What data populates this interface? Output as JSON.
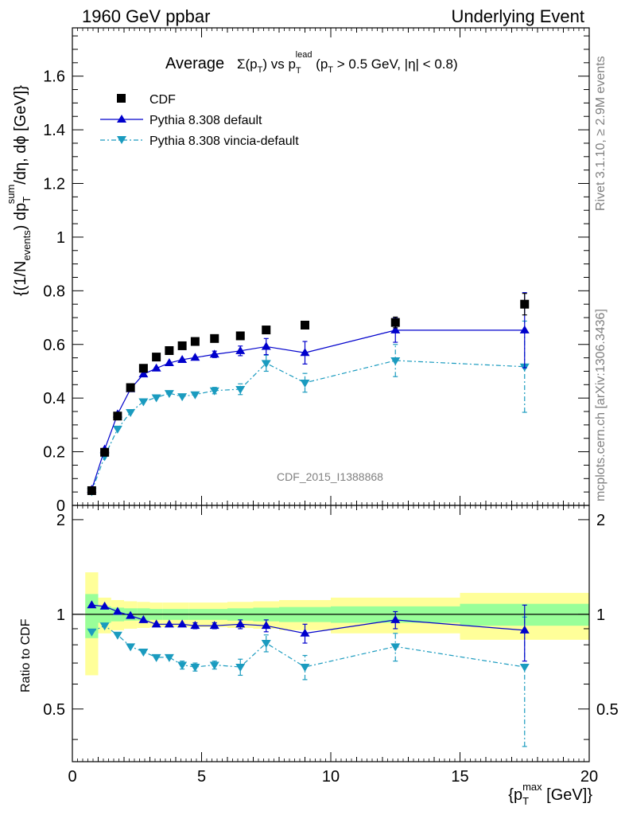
{
  "header": {
    "left": "1960 GeV ppbar",
    "right": "Underlying Event"
  },
  "side": {
    "rivet": "Rivet 3.1.10, ≥ 2.9M events",
    "mcplots": "mcplots.cern.ch [arXiv:1306.3436]"
  },
  "watermark": "CDF_2015_I1388868",
  "plot_title": {
    "a": "Average",
    "b": "Σ(p",
    "b_sub": "T",
    "c": ") vs p",
    "c_sub": "T",
    "c_sup": "lead",
    "d": " (p",
    "d_sub": "T",
    "e": " > 0.5 GeV, |η| < 0.8)"
  },
  "y_label_main": "{(1/N_events) dp_T^sum/dη, dϕ [GeV]}",
  "y_label_ratio": "Ratio to CDF",
  "x_label": "{p_T^max [GeV]}",
  "legend": {
    "cdf": "CDF",
    "pythia": "Pythia 8.308 default",
    "vincia": "Pythia 8.308 vincia-default"
  },
  "colors": {
    "cdf": "#000000",
    "pythia": "#0000cc",
    "vincia": "#1a9bbf",
    "band_inner": "#99ff99",
    "band_outer": "#ffff99"
  },
  "chart_data": {
    "type": "scatter",
    "x_range": [
      0,
      20
    ],
    "main": {
      "ylim": [
        0,
        1.78
      ],
      "yticks": [
        "0",
        "0.2",
        "0.4",
        "0.6",
        "0.8",
        "1",
        "1.2",
        "1.4",
        "1.6"
      ],
      "ytick_values": [
        0,
        0.2,
        0.4,
        0.6,
        0.8,
        1.0,
        1.2,
        1.4,
        1.6
      ]
    },
    "ratio": {
      "ylim": [
        0.34,
        2.22
      ],
      "yticks": [
        "0.5",
        "1",
        "2"
      ],
      "ytick_values": [
        0.5,
        1,
        2
      ]
    },
    "xticks": [
      "0",
      "5",
      "10",
      "15",
      "20"
    ],
    "xtick_values": [
      0,
      5,
      10,
      15,
      20
    ],
    "cdf": {
      "x": [
        0.75,
        1.25,
        1.75,
        2.25,
        2.75,
        3.25,
        3.75,
        4.25,
        4.75,
        5.5,
        6.5,
        7.5,
        9.0,
        12.5,
        17.5
      ],
      "y": [
        0.055,
        0.198,
        0.333,
        0.439,
        0.511,
        0.553,
        0.577,
        0.595,
        0.611,
        0.622,
        0.632,
        0.654,
        0.672,
        0.682,
        0.75
      ],
      "yerr": [
        0.003,
        0.004,
        0.005,
        0.006,
        0.007,
        0.007,
        0.007,
        0.008,
        0.008,
        0.008,
        0.009,
        0.01,
        0.012,
        0.02,
        0.04
      ]
    },
    "pythia": {
      "name": "Pythia 8.308 default",
      "x": [
        0.75,
        1.25,
        1.75,
        2.25,
        2.75,
        3.25,
        3.75,
        4.25,
        4.75,
        5.5,
        6.5,
        7.5,
        9.0,
        12.5,
        17.5
      ],
      "y": [
        0.059,
        0.209,
        0.34,
        0.434,
        0.489,
        0.511,
        0.531,
        0.543,
        0.551,
        0.563,
        0.576,
        0.592,
        0.569,
        0.653,
        0.653
      ],
      "yerr": [
        0.002,
        0.003,
        0.004,
        0.005,
        0.006,
        0.007,
        0.008,
        0.009,
        0.01,
        0.012,
        0.018,
        0.03,
        0.042,
        0.045,
        0.14
      ]
    },
    "vincia": {
      "name": "Pythia 8.308 vincia-default",
      "x": [
        0.75,
        1.25,
        1.75,
        2.25,
        2.75,
        3.25,
        3.75,
        4.25,
        4.75,
        5.5,
        6.5,
        7.5,
        9.0,
        12.5,
        17.5
      ],
      "y": [
        0.052,
        0.183,
        0.285,
        0.347,
        0.387,
        0.402,
        0.418,
        0.406,
        0.413,
        0.428,
        0.433,
        0.53,
        0.457,
        0.54,
        0.517
      ],
      "yerr": [
        0.002,
        0.003,
        0.004,
        0.005,
        0.006,
        0.007,
        0.008,
        0.009,
        0.01,
        0.012,
        0.02,
        0.03,
        0.035,
        0.06,
        0.17
      ]
    },
    "ratio_pythia": {
      "y": [
        1.07,
        1.06,
        1.02,
        0.99,
        0.96,
        0.93,
        0.93,
        0.93,
        0.92,
        0.92,
        0.93,
        0.92,
        0.87,
        0.96,
        0.89
      ],
      "yerr": [
        0.01,
        0.01,
        0.01,
        0.01,
        0.01,
        0.015,
        0.015,
        0.015,
        0.02,
        0.02,
        0.03,
        0.04,
        0.06,
        0.06,
        0.18
      ]
    },
    "ratio_vincia": {
      "y": [
        0.88,
        0.92,
        0.86,
        0.79,
        0.76,
        0.73,
        0.73,
        0.69,
        0.68,
        0.69,
        0.68,
        0.81,
        0.68,
        0.79,
        0.68
      ],
      "yerr": [
        0.01,
        0.01,
        0.01,
        0.01,
        0.015,
        0.015,
        0.015,
        0.02,
        0.02,
        0.02,
        0.04,
        0.05,
        0.06,
        0.08,
        0.3
      ]
    },
    "bands": {
      "edges": [
        0.5,
        1.0,
        1.5,
        2.0,
        2.5,
        3.0,
        3.5,
        4.0,
        4.5,
        5.0,
        6.0,
        7.0,
        8.0,
        10.0,
        15.0,
        20.0
      ],
      "inner": [
        0.16,
        0.06,
        0.05,
        0.045,
        0.045,
        0.04,
        0.04,
        0.04,
        0.04,
        0.04,
        0.045,
        0.05,
        0.055,
        0.06,
        0.08
      ],
      "outer": [
        0.36,
        0.13,
        0.11,
        0.1,
        0.095,
        0.09,
        0.09,
        0.09,
        0.09,
        0.09,
        0.095,
        0.1,
        0.11,
        0.13,
        0.17
      ]
    }
  }
}
